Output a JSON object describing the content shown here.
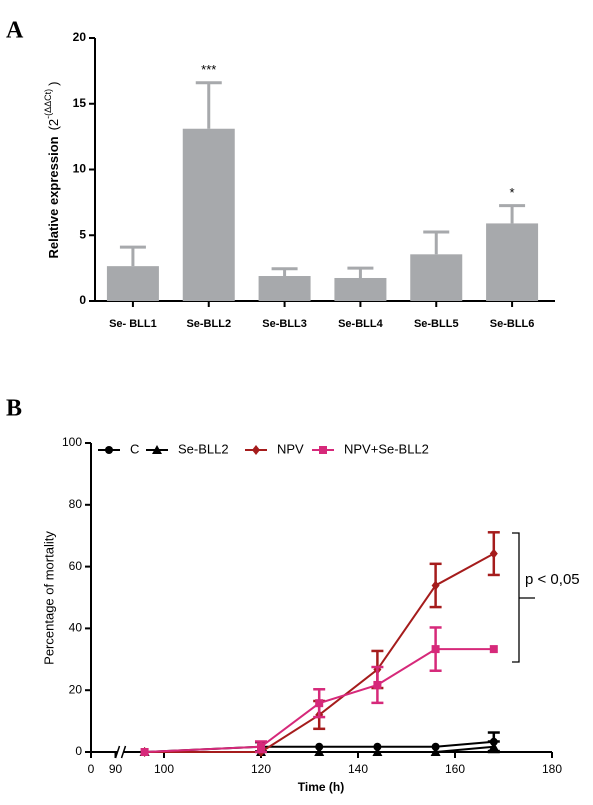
{
  "chart_data": [
    {
      "type": "bar",
      "panel": "A",
      "y_label": "Relative expression",
      "y_label_base": "(2",
      "y_label_exponent": "-(ΔΔCt)",
      "y_label_close": ")",
      "categories": [
        "Se- BLL1",
        "Se-BLL2",
        "Se-BLL3",
        "Se-BLL4",
        "Se-BLL5",
        "Se-BLL6"
      ],
      "values": [
        2.65,
        13.1,
        1.9,
        1.75,
        3.55,
        5.9
      ],
      "errors": [
        1.45,
        3.5,
        0.55,
        0.75,
        1.7,
        1.35
      ],
      "color": "#a7a9ac",
      "annotations": [
        {
          "text": "***",
          "category": "Se-BLL2"
        },
        {
          "text": "*",
          "category": "Se-BLL6"
        }
      ],
      "ylim": [
        0,
        20
      ],
      "yticks": [
        0,
        5,
        10,
        15,
        20
      ]
    },
    {
      "type": "line",
      "panel": "B",
      "x_label": "Time (h)",
      "y_label": "Percentage of mortality",
      "x": [
        96,
        120,
        132,
        144,
        156,
        168
      ],
      "series": [
        {
          "name": "C",
          "color": "#000000",
          "marker": "circle",
          "values": [
            0,
            1.7,
            1.7,
            1.7,
            1.7,
            3.3
          ],
          "errors": [
            0,
            1.5,
            0,
            0,
            0,
            3
          ]
        },
        {
          "name": "Se-BLL2",
          "color": "#000000",
          "marker": "triangle",
          "values": [
            0,
            0,
            0,
            0,
            0,
            1.7
          ],
          "errors": [
            0,
            0,
            0,
            0,
            0,
            1.7
          ]
        },
        {
          "name": "NPV",
          "color": "#a51c1c",
          "marker": "diamond",
          "values": [
            0,
            0,
            12,
            26.7,
            53.9,
            64.2
          ],
          "errors": [
            0,
            0,
            4.5,
            6,
            7,
            6.9
          ]
        },
        {
          "name": "NPV+Se-BLL2",
          "color": "#d6297a",
          "marker": "square",
          "values": [
            0,
            1.7,
            15.8,
            21.7,
            33.3,
            33.3
          ],
          "errors": [
            0,
            1.7,
            4.5,
            5.8,
            7,
            0
          ]
        }
      ],
      "annotation": "p < 0,05",
      "xlim": [
        0,
        180
      ],
      "x_break": 90,
      "xticks": [
        0,
        90,
        100,
        120,
        140,
        160,
        180
      ],
      "ylim": [
        0,
        100
      ],
      "yticks": [
        0,
        20,
        40,
        60,
        80,
        100
      ]
    }
  ]
}
